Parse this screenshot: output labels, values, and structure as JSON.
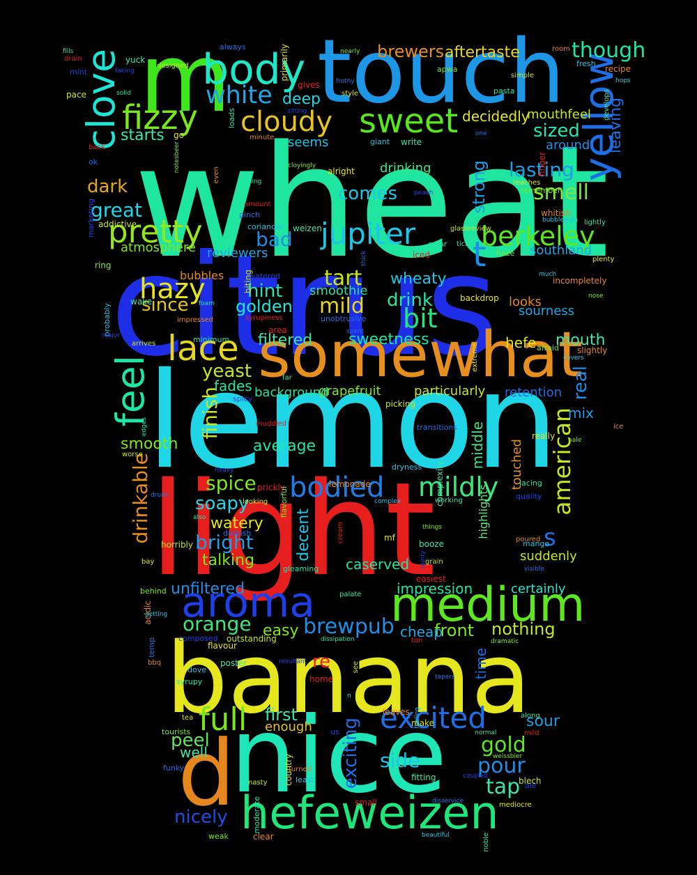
{
  "words": [
    {
      "text": "wheat",
      "color": "#1ee6a0"
    },
    {
      "text": "citrus",
      "color": "#1e2ee6"
    },
    {
      "text": "lemon",
      "color": "#1ed6e6"
    },
    {
      "text": "light",
      "color": "#e61e1e"
    },
    {
      "text": "banana",
      "color": "#e6e61e"
    },
    {
      "text": "touch",
      "color": "#1e96e6"
    },
    {
      "text": "nice",
      "color": "#1ee6b6"
    },
    {
      "text": "m",
      "color": "#3ee61e"
    },
    {
      "text": "d",
      "color": "#e6861e"
    },
    {
      "text": "somewhat",
      "color": "#e68e1e"
    },
    {
      "text": "hefeweizen",
      "color": "#1ee67a"
    },
    {
      "text": "medium",
      "color": "#5ee61e"
    },
    {
      "text": "aroma",
      "color": "#1e3ee6"
    },
    {
      "text": "body",
      "color": "#1ee6c6"
    },
    {
      "text": "clove",
      "color": "#1ee6d6"
    },
    {
      "text": "yellow",
      "color": "#1e6ee6"
    },
    {
      "text": "feel",
      "color": "#1ee6a6"
    },
    {
      "text": "pretty",
      "color": "#96e61e"
    },
    {
      "text": "sweet",
      "color": "#5ae61e"
    },
    {
      "text": "fizzy",
      "color": "#7ae61e"
    },
    {
      "text": "lace",
      "color": "#e6d61e"
    },
    {
      "text": "excited",
      "color": "#1e6ee6"
    },
    {
      "text": "full",
      "color": "#7ae61e"
    },
    {
      "text": "cloudy",
      "color": "#e6c61e"
    },
    {
      "text": "jupiter",
      "color": "#1ec6e6"
    },
    {
      "text": "berkeley",
      "color": "#5ee61e"
    },
    {
      "text": "bodied",
      "color": "#1e7ee6"
    },
    {
      "text": "white",
      "color": "#1ea6e6"
    },
    {
      "text": "hazy",
      "color": "#e6e61e"
    },
    {
      "text": "mildly",
      "color": "#3ee67e"
    },
    {
      "text": "t",
      "color": "#1e8ee6"
    },
    {
      "text": "though",
      "color": "#1ee6a6"
    },
    {
      "text": "american",
      "color": "#c6e61e"
    },
    {
      "text": "drinkable",
      "color": "#e68e1e"
    },
    {
      "text": "brewpub",
      "color": "#1e8ee6"
    },
    {
      "text": "bit",
      "color": "#1ee67e"
    },
    {
      "text": "smell",
      "color": "#7ee63e"
    },
    {
      "text": "lasting",
      "color": "#1e9ee6"
    },
    {
      "text": "exciting",
      "color": "#1e6ee6"
    },
    {
      "text": "gold",
      "color": "#5ee61e"
    },
    {
      "text": "pour",
      "color": "#1e8ee6"
    },
    {
      "text": "great",
      "color": "#1ed6e6"
    },
    {
      "text": "strong",
      "color": "#1e9ee6"
    },
    {
      "text": "comes",
      "color": "#1ec6e6"
    },
    {
      "text": "sized",
      "color": "#1ee6b6"
    },
    {
      "text": "leaving",
      "color": "#1e6ee6"
    },
    {
      "text": "dark",
      "color": "#e6a61e"
    },
    {
      "text": "finish",
      "color": "#c6e61e"
    },
    {
      "text": "yeast",
      "color": "#c6e61e"
    },
    {
      "text": "tart",
      "color": "#c6e61e"
    },
    {
      "text": "mild",
      "color": "#e6d61e"
    },
    {
      "text": "bad",
      "color": "#1e8ee6"
    },
    {
      "text": "hint",
      "color": "#1ee6b6"
    },
    {
      "text": "since",
      "color": "#e6c61e"
    },
    {
      "text": "golden",
      "color": "#1ee6d6"
    },
    {
      "text": "drink",
      "color": "#1ee6a6"
    },
    {
      "text": "spice",
      "color": "#7ee61e"
    },
    {
      "text": "real",
      "color": "#1e8ee6"
    },
    {
      "text": "orange",
      "color": "#3ee67e"
    },
    {
      "text": "decent",
      "color": "#1ec6e6"
    },
    {
      "text": "bright",
      "color": "#1e9ee6"
    },
    {
      "text": "soapy",
      "color": "#1ed6e6"
    },
    {
      "text": "s",
      "color": "#1e6ee6"
    },
    {
      "text": "front",
      "color": "#7ee61e"
    },
    {
      "text": "nothing",
      "color": "#c6e61e"
    },
    {
      "text": "first",
      "color": "#3ee6a6"
    },
    {
      "text": "sour",
      "color": "#1e9ee6"
    },
    {
      "text": "tap",
      "color": "#3ee6a6"
    },
    {
      "text": "side",
      "color": "#1ec6e6"
    },
    {
      "text": "peel",
      "color": "#5ee65e"
    },
    {
      "text": "nicely",
      "color": "#1e4ee6"
    },
    {
      "text": "brewers",
      "color": "#e68e1e"
    },
    {
      "text": "aftertaste",
      "color": "#e6d61e"
    },
    {
      "text": "deep",
      "color": "#1ed6e6"
    },
    {
      "text": "starts",
      "color": "#3ee6a6"
    },
    {
      "text": "decidedly",
      "color": "#e6e61e"
    },
    {
      "text": "mouthfeel",
      "color": "#c6e61e"
    },
    {
      "text": "sweetness",
      "color": "#1ee6a6"
    },
    {
      "text": "wheaty",
      "color": "#1ec6e6"
    },
    {
      "text": "filtered",
      "color": "#3ee6a6"
    },
    {
      "text": "hefe",
      "color": "#e6e61e"
    },
    {
      "text": "mouth",
      "color": "#3ee6a6"
    },
    {
      "text": "smooth",
      "color": "#7ee61e"
    },
    {
      "text": "average",
      "color": "#1ee6a6"
    },
    {
      "text": "watery",
      "color": "#e6e61e"
    },
    {
      "text": "talking",
      "color": "#7ee61e"
    },
    {
      "text": "unfiltered",
      "color": "#1e8ee6"
    },
    {
      "text": "beachwood",
      "color": "#e6861e"
    },
    {
      "text": "medium2",
      "color": "#5ee61e"
    },
    {
      "text": "easy",
      "color": "#7ee61e"
    },
    {
      "text": "impression",
      "color": "#1ee6a6"
    },
    {
      "text": "caserved",
      "color": "#1ee6a6"
    },
    {
      "text": "certainly",
      "color": "#1ee6d6"
    },
    {
      "text": "enough",
      "color": "#e6c61e"
    },
    {
      "text": "well",
      "color": "#3ee6a6"
    },
    {
      "text": "re",
      "color": "#e61e1e"
    },
    {
      "text": "cheap",
      "color": "#1ea6e6"
    },
    {
      "text": "time",
      "color": "#1e6ee6"
    },
    {
      "text": "atmosphere",
      "color": "#7ee61e"
    },
    {
      "text": "reviewers",
      "color": "#1ea6e6"
    },
    {
      "text": "southland",
      "color": "#1ea6e6"
    },
    {
      "text": "smoothie",
      "color": "#1ee6a6"
    },
    {
      "text": "grapefruit",
      "color": "#7ee61e"
    },
    {
      "text": "background",
      "color": "#1ee6a6"
    },
    {
      "text": "particularly",
      "color": "#c6e61e"
    },
    {
      "text": "retention",
      "color": "#1e6ee6"
    },
    {
      "text": "mix",
      "color": "#1e9ee6"
    },
    {
      "text": "fades",
      "color": "#1ee6a6"
    },
    {
      "text": "middle",
      "color": "#3ee67e"
    },
    {
      "text": "touched",
      "color": "#e68e1e"
    },
    {
      "text": "suddenly",
      "color": "#c6e61e"
    },
    {
      "text": "drinking",
      "color": "#3ee67e"
    },
    {
      "text": "around",
      "color": "#1e8ee6"
    },
    {
      "text": "looks",
      "color": "#e6861e"
    },
    {
      "text": "sourness",
      "color": "#1ea6e6"
    },
    {
      "text": "seems",
      "color": "#1ec6e6"
    },
    {
      "text": "highlights",
      "color": "#5ee67e"
    },
    {
      "text": "ring",
      "color": "#7ee63e"
    },
    {
      "text": "bubbles",
      "color": "#e6861e"
    }
  ],
  "small_words": [
    "fills",
    "drain",
    "always",
    "primarily",
    "nearly",
    "room",
    "fresh",
    "yuck",
    "faking",
    "designed",
    "loads",
    "gives",
    "frothy",
    "style",
    "apwa",
    "recipe",
    "hops",
    "develops",
    "mint",
    "pace",
    "solid",
    "back",
    "ok",
    "go",
    "notesbeer",
    "minute",
    "giant",
    "write",
    "sitting",
    "simple",
    "pasta",
    "finger",
    "one",
    "reaches",
    "remember",
    "whitish",
    "bubblegum",
    "lightly",
    "marketing",
    "addictive",
    "calling",
    "amount",
    "pinch",
    "alright",
    "cloyingly",
    "even",
    "coriander",
    "weizen",
    "peach",
    "glassreview",
    "color",
    "iced",
    "thick",
    "plenty",
    "haze",
    "incompletely",
    "much",
    "tick",
    "watered",
    "biting",
    "foam",
    "syrupiness",
    "unobtrusive",
    "backdrop",
    "nose",
    "impressed",
    "probably",
    "wake",
    "major",
    "arrives",
    "minimum",
    "area",
    "spent",
    "extreme",
    "afraid",
    "slightly",
    "covers",
    "far",
    "spicy",
    "picking",
    "edges",
    "muddled",
    "transitions",
    "really",
    "pale",
    "ice",
    "dryness",
    "complexity",
    "heavy",
    "worse",
    "lacing",
    "prickly",
    "drunk",
    "looking",
    "flavorful",
    "lemonade",
    "complex",
    "working",
    "quality",
    "horribly",
    "also",
    "cream",
    "darkish",
    "mf",
    "things",
    "poured",
    "mango",
    "booze",
    "minty",
    "grain",
    "gleaming",
    "easiest",
    "visible",
    "bay",
    "behind",
    "acidic",
    "getting",
    "palate",
    "composed",
    "outstanding",
    "dissipation",
    "ton",
    "temp",
    "flavour",
    "dramatic",
    "bbq",
    "dove",
    "poster",
    "resultant",
    "see",
    "syrupy",
    "home",
    "tapers",
    "tea",
    "tourists",
    "leaves",
    "feeling",
    "along",
    "us",
    "make",
    "normal",
    "mild",
    "funky",
    "country",
    "weissbier",
    "turned",
    "least",
    "fitting",
    "coupled",
    "nasty",
    "moderate",
    "small",
    "disservice",
    "mediocre",
    "weak",
    "clear",
    "beautiful",
    "noble",
    "ale",
    "blech",
    "n"
  ]
}
